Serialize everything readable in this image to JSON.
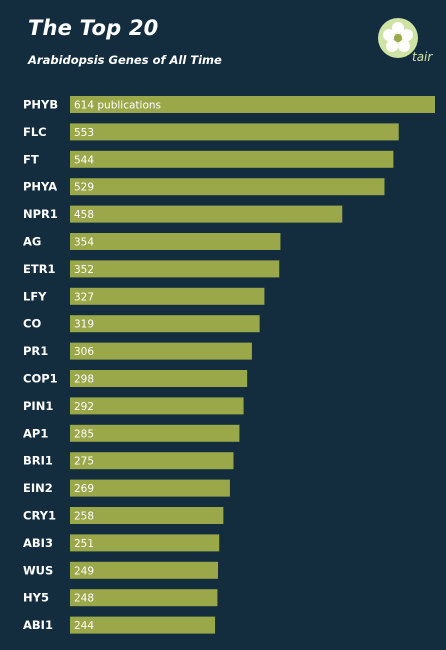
{
  "header": {
    "title": "The Top 20",
    "subtitle": "Arabidopsis Genes of All Time",
    "logo_text": "tair"
  },
  "colors": {
    "background": "#132d3f",
    "bar": "#9aa84a",
    "label": "#ffffff",
    "logo": "#cfe3a5"
  },
  "chart_data": {
    "type": "bar",
    "orientation": "horizontal",
    "title": "The Top 20",
    "subtitle": "Arabidopsis Genes of All Time",
    "categories": [
      "PHYB",
      "FLC",
      "FT",
      "PHYA",
      "NPR1",
      "AG",
      "ETR1",
      "LFY",
      "CO",
      "PR1",
      "COP1",
      "PIN1",
      "AP1",
      "BRI1",
      "EIN2",
      "CRY1",
      "ABI3",
      "WUS",
      "HY5",
      "ABI1"
    ],
    "values": [
      614,
      553,
      544,
      529,
      458,
      354,
      352,
      327,
      319,
      306,
      298,
      292,
      285,
      275,
      269,
      258,
      251,
      249,
      248,
      244
    ],
    "value_labels": [
      "614 publications",
      "553",
      "544",
      "529",
      "458",
      "354",
      "352",
      "327",
      "319",
      "306",
      "298",
      "292",
      "285",
      "275",
      "269",
      "258",
      "251",
      "249",
      "248",
      "244"
    ],
    "xlim": [
      0,
      614
    ],
    "grid": false
  }
}
